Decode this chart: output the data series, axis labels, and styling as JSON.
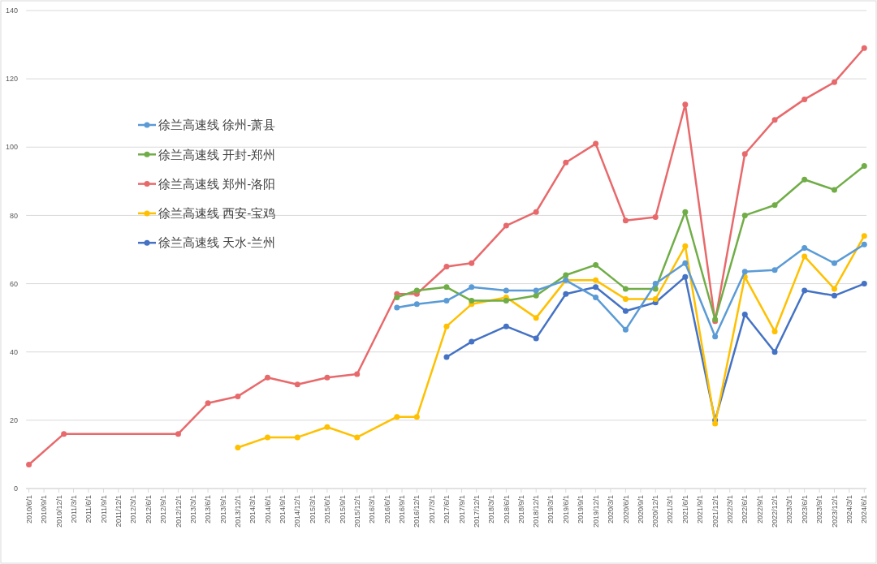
{
  "chart_data": {
    "type": "line",
    "marker": "circle",
    "line_style": "solid",
    "grid": "y",
    "legend": "left",
    "xlim": [
      "2010-05-15",
      "2024-06-15"
    ],
    "ylim": [
      0,
      140
    ],
    "yticks": [
      0,
      20,
      40,
      60,
      80,
      100,
      120,
      140
    ],
    "xticks": [
      {
        "value": "2010-06",
        "label": "2010/6/1"
      },
      {
        "value": "2010-09",
        "label": "2010/9/1"
      },
      {
        "value": "2010-12",
        "label": "2010/12/1"
      },
      {
        "value": "2011-03",
        "label": "2011/3/1"
      },
      {
        "value": "2011-06",
        "label": "2011/6/1"
      },
      {
        "value": "2011-09",
        "label": "2011/9/1"
      },
      {
        "value": "2011-12",
        "label": "2011/12/1"
      },
      {
        "value": "2012-03",
        "label": "2012/3/1"
      },
      {
        "value": "2012-06",
        "label": "2012/6/1"
      },
      {
        "value": "2012-09",
        "label": "2012/9/1"
      },
      {
        "value": "2012-12",
        "label": "2012/12/1"
      },
      {
        "value": "2013-03",
        "label": "2013/3/1"
      },
      {
        "value": "2013-06",
        "label": "2013/6/1"
      },
      {
        "value": "2013-09",
        "label": "2013/9/1"
      },
      {
        "value": "2013-12",
        "label": "2013/12/1"
      },
      {
        "value": "2014-03",
        "label": "2014/3/1"
      },
      {
        "value": "2014-06",
        "label": "2014/6/1"
      },
      {
        "value": "2014-09",
        "label": "2014/9/1"
      },
      {
        "value": "2014-12",
        "label": "2014/12/1"
      },
      {
        "value": "2015-03",
        "label": "2015/3/1"
      },
      {
        "value": "2015-06",
        "label": "2015/6/1"
      },
      {
        "value": "2015-09",
        "label": "2015/9/1"
      },
      {
        "value": "2015-12",
        "label": "2015/12/1"
      },
      {
        "value": "2016-03",
        "label": "2016/3/1"
      },
      {
        "value": "2016-06",
        "label": "2016/6/1"
      },
      {
        "value": "2016-09",
        "label": "2016/9/1"
      },
      {
        "value": "2016-12",
        "label": "2016/12/1"
      },
      {
        "value": "2017-03",
        "label": "2017/3/1"
      },
      {
        "value": "2017-06",
        "label": "2017/6/1"
      },
      {
        "value": "2017-09",
        "label": "2017/9/1"
      },
      {
        "value": "2017-12",
        "label": "2017/12/1"
      },
      {
        "value": "2018-03",
        "label": "2018/3/1"
      },
      {
        "value": "2018-06",
        "label": "2018/6/1"
      },
      {
        "value": "2018-09",
        "label": "2018/9/1"
      },
      {
        "value": "2018-12",
        "label": "2018/12/1"
      },
      {
        "value": "2019-03",
        "label": "2019/3/1"
      },
      {
        "value": "2019-06",
        "label": "2019/6/1"
      },
      {
        "value": "2019-09",
        "label": "2019/9/1"
      },
      {
        "value": "2019-12",
        "label": "2019/12/1"
      },
      {
        "value": "2020-03",
        "label": "2020/3/1"
      },
      {
        "value": "2020-06",
        "label": "2020/6/1"
      },
      {
        "value": "2020-09",
        "label": "2020/9/1"
      },
      {
        "value": "2020-12",
        "label": "2020/12/1"
      },
      {
        "value": "2021-03",
        "label": "2021/3/1"
      },
      {
        "value": "2021-06",
        "label": "2021/6/1"
      },
      {
        "value": "2021-09",
        "label": "2021/9/1"
      },
      {
        "value": "2021-12",
        "label": "2021/12/1"
      },
      {
        "value": "2022-03",
        "label": "2022/3/1"
      },
      {
        "value": "2022-06",
        "label": "2022/6/1"
      },
      {
        "value": "2022-09",
        "label": "2022/9/1"
      },
      {
        "value": "2022-12",
        "label": "2022/12/1"
      },
      {
        "value": "2023-03",
        "label": "2023/3/1"
      },
      {
        "value": "2023-06",
        "label": "2023/6/1"
      },
      {
        "value": "2023-09",
        "label": "2023/9/1"
      },
      {
        "value": "2023-12",
        "label": "2023/12/1"
      },
      {
        "value": "2024-03",
        "label": "2024/3/1"
      },
      {
        "value": "2024-06",
        "label": "2024/6/1"
      }
    ],
    "series": [
      {
        "name": "徐兰高速线 徐州-萧县",
        "color": "#5b9bd5",
        "x": [
          "2016-08",
          "2016-12",
          "2017-06",
          "2017-11",
          "2018-06",
          "2018-12",
          "2019-06",
          "2019-12",
          "2020-06",
          "2020-12",
          "2021-06",
          "2021-12",
          "2022-06",
          "2022-12",
          "2023-06",
          "2023-12",
          "2024-06"
        ],
        "values": [
          53,
          54,
          55,
          59,
          58,
          58,
          61,
          56,
          46.5,
          60,
          66,
          44.5,
          63.5,
          64,
          70.5,
          66,
          71.5
        ]
      },
      {
        "name": "徐兰高速线 开封-郑州",
        "color": "#70ad47",
        "x": [
          "2016-08",
          "2016-12",
          "2017-06",
          "2017-11",
          "2018-06",
          "2018-12",
          "2019-06",
          "2019-12",
          "2020-06",
          "2020-12",
          "2021-06",
          "2021-12",
          "2022-06",
          "2022-12",
          "2023-06",
          "2023-12",
          "2024-06"
        ],
        "values": [
          56,
          58,
          59,
          55,
          55,
          56.5,
          62.5,
          65.5,
          58.5,
          58.5,
          81,
          49.5,
          80,
          83,
          90.5,
          87.5,
          94.5
        ]
      },
      {
        "name": "徐兰高速线 郑州-洛阳",
        "color": "#e8696b",
        "x": [
          "2010-06",
          "2011-01",
          "2012-12",
          "2013-06",
          "2013-12",
          "2014-06",
          "2014-12",
          "2015-06",
          "2015-12",
          "2016-08",
          "2016-12",
          "2017-06",
          "2017-11",
          "2018-06",
          "2018-12",
          "2019-06",
          "2019-12",
          "2020-06",
          "2020-12",
          "2021-06",
          "2021-12",
          "2022-06",
          "2022-12",
          "2023-06",
          "2023-12",
          "2024-06"
        ],
        "values": [
          7,
          16,
          16,
          25,
          27,
          32.5,
          30.5,
          32.5,
          33.5,
          57,
          57,
          65,
          66,
          77,
          81,
          95.5,
          101,
          78.5,
          79.5,
          112.5,
          49,
          98,
          108,
          114,
          119,
          129
        ]
      },
      {
        "name": "徐兰高速线 西安-宝鸡",
        "color": "#ffc000",
        "x": [
          "2013-12",
          "2014-06",
          "2014-12",
          "2015-06",
          "2015-12",
          "2016-08",
          "2016-12",
          "2017-06",
          "2017-11",
          "2018-06",
          "2018-12",
          "2019-06",
          "2019-12",
          "2020-06",
          "2020-12",
          "2021-06",
          "2021-12",
          "2022-06",
          "2022-12",
          "2023-06",
          "2023-12",
          "2024-06"
        ],
        "values": [
          12,
          15,
          15,
          18,
          15,
          21,
          21,
          47.5,
          54,
          56,
          50,
          61,
          61,
          55.5,
          55.5,
          71,
          19,
          62,
          46,
          68,
          58.5,
          74
        ]
      },
      {
        "name": "徐兰高速线 天水-兰州",
        "color": "#4472c4",
        "x": [
          "2017-06",
          "2017-11",
          "2018-06",
          "2018-12",
          "2019-06",
          "2019-12",
          "2020-06",
          "2020-12",
          "2021-06",
          "2021-12",
          "2022-06",
          "2022-12",
          "2023-06",
          "2023-12",
          "2024-06"
        ],
        "values": [
          38.5,
          43,
          47.5,
          44,
          57,
          59,
          52,
          54.5,
          62,
          20,
          51,
          40,
          58,
          56.5,
          60
        ]
      }
    ]
  }
}
